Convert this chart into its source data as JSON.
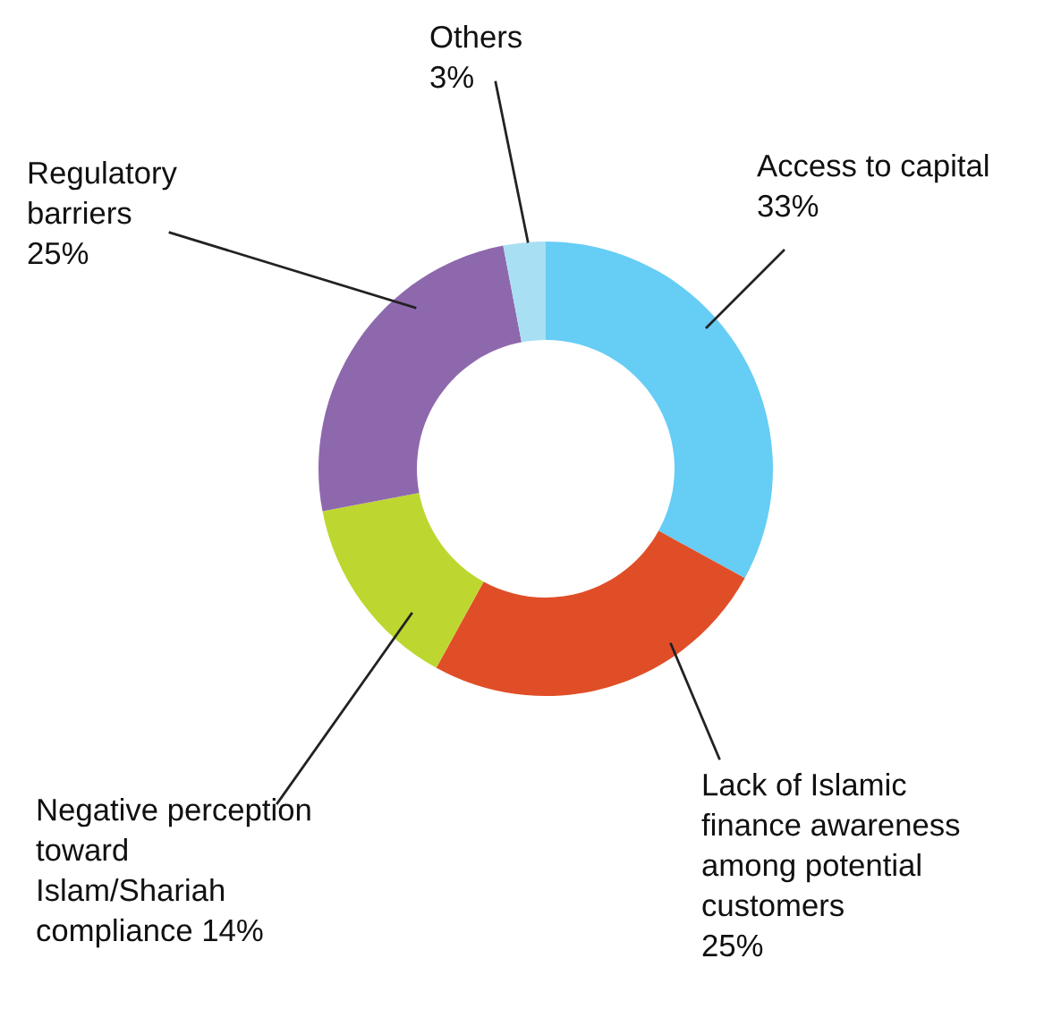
{
  "chart_data": {
    "type": "donut",
    "categories": [
      "Access to capital",
      "Lack of Islamic\nfinance awareness\namong potential\ncustomers",
      "Negative perception\ntoward\nIslam/Shariah\ncompliance",
      "Regulatory\nbarriers",
      "Others"
    ],
    "values": [
      33,
      25,
      14,
      25,
      3
    ],
    "value_labels": [
      "33%",
      "25%",
      "14%",
      "25%",
      "3%"
    ],
    "colors": [
      "#66cdf5",
      "#e04e28",
      "#bed730",
      "#8e68ad",
      "#a9dff2"
    ]
  }
}
